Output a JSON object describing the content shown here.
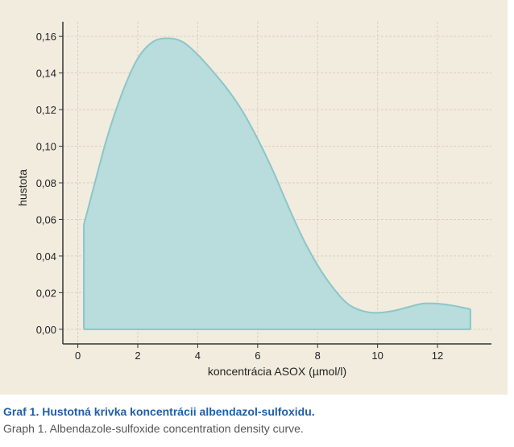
{
  "chart_data": {
    "type": "area",
    "title": "",
    "xlabel": "koncentrácia ASOX (µmol/l)",
    "ylabel": "hustota",
    "xlim": [
      -0.5,
      13.8
    ],
    "ylim": [
      -0.008,
      0.168
    ],
    "xticks": [
      0,
      2,
      4,
      6,
      8,
      10,
      12
    ],
    "xtick_labels": [
      "0",
      "2",
      "4",
      "6",
      "8",
      "10",
      "12"
    ],
    "yticks": [
      0,
      0.02,
      0.04,
      0.06,
      0.08,
      0.1,
      0.12,
      0.14,
      0.16
    ],
    "ytick_labels": [
      "0,00",
      "0,02",
      "0,04",
      "0,06",
      "0,08",
      "0,10",
      "0,12",
      "0,14",
      "0,16"
    ],
    "grid": true,
    "colors": {
      "fill": "#b9dcdc",
      "line": "#8cc6c9",
      "grid": "#d8d0c0",
      "axis": "#333333",
      "panel": "#f2ecdf"
    },
    "series": [
      {
        "x": [
          0.2,
          0.6,
          1.0,
          1.5,
          2.0,
          2.5,
          3.0,
          3.5,
          4.0,
          4.5,
          5.0,
          5.5,
          6.0,
          6.5,
          7.0,
          7.5,
          8.0,
          8.5,
          9.0,
          9.5,
          10.0,
          10.5,
          11.0,
          11.5,
          12.0,
          12.5,
          13.1
        ],
        "y": [
          0.057,
          0.082,
          0.106,
          0.13,
          0.148,
          0.157,
          0.159,
          0.157,
          0.15,
          0.141,
          0.131,
          0.119,
          0.104,
          0.087,
          0.068,
          0.05,
          0.035,
          0.023,
          0.014,
          0.01,
          0.009,
          0.01,
          0.012,
          0.014,
          0.014,
          0.013,
          0.011
        ]
      }
    ]
  },
  "caption": {
    "title": "Graf 1. Hustotná krivka koncentrácii albendazol-sulfoxidu.",
    "subtitle": "Graph 1. Albendazole-sulfoxide concentration density curve."
  }
}
